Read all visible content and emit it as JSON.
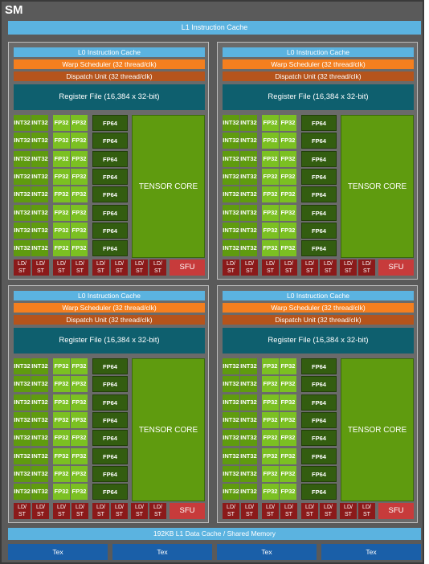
{
  "sm": {
    "title": "SM",
    "l1_instruction_cache": "L1 Instruction Cache",
    "l1_data_cache": "192KB L1 Data Cache / Shared Memory",
    "tex_labels": [
      "Tex",
      "Tex",
      "Tex",
      "Tex"
    ]
  },
  "partition": {
    "l0_cache": "L0 Instruction Cache",
    "warp_scheduler": "Warp Scheduler (32 thread/clk)",
    "dispatch_unit": "Dispatch Unit (32 thread/clk)",
    "register_file": "Register File (16,384 x 32-bit)",
    "int32": "INT32",
    "fp32": "FP32",
    "fp64": "FP64",
    "tensor_core": "TENSOR CORE",
    "ld_st_line1": "LD/",
    "ld_st_line2": "ST",
    "sfu": "SFU",
    "rows": 8,
    "ld_st_units": 8
  },
  "colors": {
    "cache": "#5bb3e0",
    "warp": "#f47f1f",
    "dispatch": "#b5541c",
    "register": "#0e5f6e",
    "int32": "#5f9b0f",
    "fp32": "#7bc022",
    "fp64": "#335d10",
    "ldst": "#8b1a1a",
    "sfu": "#c73b3b",
    "tex": "#1a5fa8"
  }
}
